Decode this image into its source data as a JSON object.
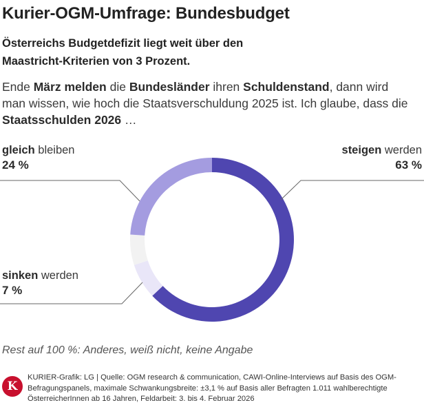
{
  "title": "Kurier-OGM-Umfrage: Bundesbudget",
  "subtitle": "Österreichs Budgetdefizit liegt weit über den Maastricht-Kriterien von 3 Prozent.",
  "question": {
    "p1": "Ende ",
    "b1": "März melden",
    "p2": " die ",
    "b2": "Bundesländer",
    "p3": " ihren ",
    "b3": "Schuldenstand",
    "p4": ", dann wird man wissen, wie hoch die Staatsverschuldung 2025 ist. Ich glaube, dass die ",
    "b4": "Staatsschulden 2026",
    "p5": " …"
  },
  "labels": {
    "steigen": {
      "bold": "steigen",
      "rest": " werden",
      "pct": "63 %"
    },
    "gleich": {
      "bold": "gleich",
      "rest": " bleiben",
      "pct": "24 %"
    },
    "sinken": {
      "bold": "sinken",
      "rest": " werden",
      "pct": "7 %"
    }
  },
  "note": "Rest auf 100 %: Anderes, weiß nicht, keine Angabe",
  "footer": {
    "logo": "K",
    "source": "KURIER-Grafik: LG | Quelle: OGM research & communication, CAWI-Online-Interviews auf Basis des OGM-Befragungspanels, maximale Schwankungsbreite: ±3,1 % auf Basis aller Befragten 1.011 wahlberechtigte ÖsterreicherInnen ab 16 Jahren, Feldarbeit: 3. bis 4. Februar 2026"
  },
  "colors": {
    "steigen": "#4f46b0",
    "sinken": "#e9e6f8",
    "rest": "#f2f2f2",
    "gleich": "#a49ce0",
    "leader": "#666666"
  },
  "chart_data": {
    "type": "pie",
    "variant": "donut",
    "title": "Kurier-OGM-Umfrage: Bundesbudget",
    "categories": [
      "steigen werden",
      "sinken werden",
      "Rest",
      "gleich bleiben"
    ],
    "values": [
      63,
      7,
      6,
      24
    ],
    "unit": "%"
  }
}
